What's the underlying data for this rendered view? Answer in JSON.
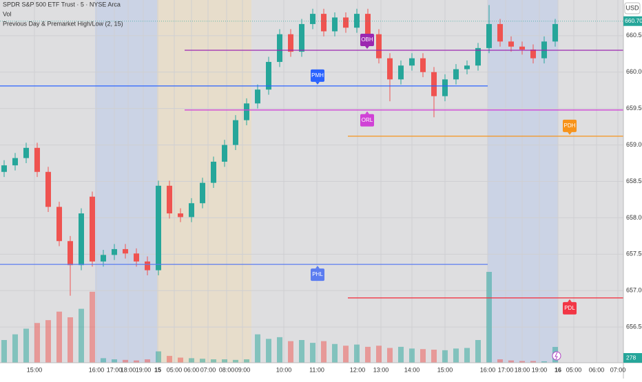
{
  "chart_data": {
    "type": "candlestick",
    "title": "SPDR S&P 500 ETF Trust · 5 · NYSE Arca",
    "volume_label": "Vol",
    "indicator": "Previous Day & Premarket High/Low (2, 15)",
    "currency": "USD",
    "x": [
      1.5,
      5.5,
      9.5,
      13.5,
      17.5,
      21.5,
      25.5,
      29.5,
      33.5,
      37.5,
      41.5,
      45.5,
      49.5,
      53.5,
      57.5,
      61.5,
      65.5,
      69.5,
      73.5,
      77.5,
      81.5,
      85.5,
      89.5,
      93.5,
      97.5,
      101.5,
      105.5,
      109.5,
      113.5,
      117.5,
      121.5,
      125.5,
      129.5,
      133.5,
      137.5,
      141.5,
      145.5,
      149.5,
      153.5,
      157.5,
      161.5,
      165.5,
      169.5,
      173.5,
      177.5,
      181.5,
      185.5,
      189.5,
      193.5,
      197.5,
      201.5
    ],
    "open": [
      658.63,
      658.72,
      658.82,
      658.96,
      658.63,
      658.15,
      657.68,
      657.35,
      658.29,
      657.4,
      657.49,
      657.57,
      657.51,
      657.4,
      657.28,
      658.44,
      658.06,
      658.01,
      658.2,
      658.48,
      658.77,
      659.0,
      659.34,
      659.57,
      659.76,
      660.14,
      660.52,
      660.28,
      660.66,
      660.8,
      660.56,
      660.75,
      660.61,
      660.8,
      660.52,
      660.19,
      659.9,
      660.09,
      660.19,
      660.0,
      659.67,
      659.9,
      660.04,
      660.09,
      660.33,
      660.66,
      660.42,
      660.35,
      660.31,
      660.19,
      660.42
    ],
    "high": [
      658.79,
      658.89,
      659.03,
      659.03,
      658.7,
      658.22,
      657.75,
      658.13,
      658.36,
      657.56,
      657.64,
      657.64,
      657.58,
      657.47,
      658.51,
      658.51,
      658.13,
      658.27,
      658.55,
      658.84,
      659.07,
      659.41,
      659.64,
      659.83,
      660.21,
      660.59,
      660.59,
      660.73,
      660.87,
      660.87,
      660.82,
      660.82,
      660.87,
      660.87,
      660.59,
      660.26,
      660.16,
      660.26,
      660.26,
      660.07,
      659.97,
      660.11,
      660.16,
      660.4,
      660.92,
      660.73,
      660.49,
      660.42,
      660.38,
      660.49,
      660.73
    ],
    "low": [
      658.56,
      658.65,
      658.75,
      658.56,
      658.08,
      657.61,
      656.93,
      657.28,
      657.33,
      657.33,
      657.42,
      657.44,
      657.33,
      657.21,
      657.21,
      657.99,
      657.94,
      657.94,
      658.13,
      658.41,
      658.7,
      658.93,
      659.27,
      659.5,
      659.69,
      660.07,
      660.21,
      660.21,
      660.59,
      660.49,
      660.49,
      660.54,
      660.54,
      660.45,
      660.12,
      659.6,
      659.83,
      660.02,
      659.93,
      659.38,
      659.6,
      659.83,
      659.97,
      660.02,
      660.26,
      660.35,
      660.28,
      660.24,
      660.12,
      660.12,
      660.35
    ],
    "close": [
      658.72,
      658.82,
      658.96,
      658.63,
      658.15,
      657.68,
      657.35,
      658.06,
      657.4,
      657.49,
      657.57,
      657.51,
      657.4,
      657.28,
      658.44,
      658.06,
      658.01,
      658.2,
      658.48,
      658.77,
      659.0,
      659.34,
      659.57,
      659.76,
      660.14,
      660.52,
      660.28,
      660.66,
      660.8,
      660.56,
      660.75,
      660.61,
      660.8,
      660.52,
      660.19,
      659.9,
      660.09,
      660.19,
      660.0,
      659.67,
      659.9,
      660.04,
      660.09,
      660.33,
      660.66,
      660.42,
      660.35,
      660.31,
      660.19,
      660.42,
      660.66
    ],
    "volume": [
      400,
      500,
      600,
      700,
      750,
      900,
      800,
      950,
      1250,
      80,
      60,
      50,
      40,
      60,
      200,
      120,
      90,
      80,
      70,
      60,
      60,
      50,
      60,
      500,
      420,
      450,
      380,
      400,
      350,
      380,
      330,
      300,
      320,
      280,
      300,
      260,
      280,
      250,
      240,
      230,
      220,
      250,
      260,
      400,
      1600,
      60,
      40,
      30,
      30,
      25,
      278
    ],
    "up_color": "#26a69a",
    "down_color": "#ef5350",
    "xlim": [
      0,
      226.25
    ],
    "xticks": [
      {
        "value": 12.5,
        "label": "15:00"
      },
      {
        "value": 35,
        "label": "16:00"
      },
      {
        "value": 41.5,
        "label": "17:00"
      },
      {
        "value": 46.5,
        "label": "18:00"
      },
      {
        "value": 52,
        "label": "19:00"
      },
      {
        "value": 57.25,
        "label": "15"
      },
      {
        "value": 63.25,
        "label": "05:00"
      },
      {
        "value": 69.5,
        "label": "06:00"
      },
      {
        "value": 75.5,
        "label": "07:00"
      },
      {
        "value": 82.25,
        "label": "08:00"
      },
      {
        "value": 88,
        "label": "09:00"
      },
      {
        "value": 103,
        "label": "10:00"
      },
      {
        "value": 115,
        "label": "11:00"
      },
      {
        "value": 129.75,
        "label": "12:00"
      },
      {
        "value": 138.25,
        "label": "13:00"
      },
      {
        "value": 149.5,
        "label": "14:00"
      },
      {
        "value": 161.5,
        "label": "15:00"
      },
      {
        "value": 177,
        "label": "16:00"
      },
      {
        "value": 183.5,
        "label": "17:00"
      },
      {
        "value": 189.5,
        "label": "18:00"
      },
      {
        "value": 195.75,
        "label": "19:00"
      },
      {
        "value": 202.5,
        "label": "16"
      },
      {
        "value": 208.25,
        "label": "05:00"
      },
      {
        "value": 216.5,
        "label": "06:00"
      },
      {
        "value": 224.25,
        "label": "07:00"
      }
    ],
    "ylim": [
      656.01,
      660.99
    ],
    "yticks": [
      {
        "value": 656.5,
        "label": "656.50"
      },
      {
        "value": 657,
        "label": "657.00"
      },
      {
        "value": 657.5,
        "label": "657.50"
      },
      {
        "value": 658,
        "label": "658.00"
      },
      {
        "value": 658.5,
        "label": "658.50"
      },
      {
        "value": 659,
        "label": "659.00"
      },
      {
        "value": 659.5,
        "label": "659.50"
      },
      {
        "value": 660,
        "label": "660.00"
      },
      {
        "value": 660.5,
        "label": "660.50"
      }
    ],
    "grid": true,
    "last_price": {
      "value": 660.7,
      "label": "660.70"
    },
    "sessions": [
      {
        "from": 34.5,
        "to": 57,
        "color": "#c5d0e6"
      },
      {
        "from": 57,
        "to": 91.25,
        "color": "#e9dcc6"
      },
      {
        "from": 177,
        "to": 202.5,
        "color": "#c5d0e6"
      }
    ],
    "levels": [
      {
        "name": "PMH",
        "value": 659.81,
        "color": "#2962ff",
        "from": 0,
        "to": 177
      },
      {
        "name": "PHL",
        "value": 657.36,
        "color": "#5b7cf0",
        "from": 0,
        "to": 177
      },
      {
        "name": "OBH",
        "value": 660.3,
        "color": "#9c27b0",
        "from": 67,
        "to": 226.25
      },
      {
        "name": "ORL",
        "value": 659.48,
        "color": "#d042d6",
        "from": 67,
        "to": 226.25
      },
      {
        "name": "PDH",
        "value": 659.12,
        "color": "#f7931a",
        "from": 126.25,
        "to": 226.25
      },
      {
        "name": "PDL",
        "value": 656.9,
        "color": "#f23645",
        "from": 126.25,
        "to": 226.25
      }
    ]
  }
}
